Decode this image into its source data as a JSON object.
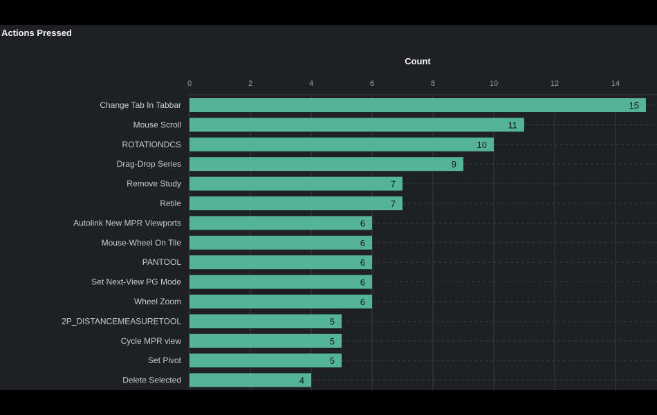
{
  "panel": {
    "title": "Actions Pressed"
  },
  "colors": {
    "background": "#000000",
    "panel": "#1f2024",
    "bar": "#56b496",
    "grid": "#3a3c42",
    "tick_text": "#9a9da3",
    "category_text": "#c8cace"
  },
  "chart_data": {
    "type": "bar",
    "orientation": "horizontal",
    "title": "",
    "xlabel": "Count",
    "ylabel": "",
    "xlim": [
      0,
      15
    ],
    "x_ticks": [
      0,
      2,
      4,
      6,
      8,
      10,
      12,
      14
    ],
    "x_axis_position": "top",
    "grid": "vertical solid, horizontal dashed",
    "categories": [
      "Change Tab In Tabbar",
      "Mouse Scroll",
      "ROTATIONDCS",
      "Drag-Drop Series",
      "Remove Study",
      "Retile",
      "Autolink New MPR Viewports",
      "Mouse-Wheel On Tile",
      "PANTOOL",
      "Set Next-View PG Mode",
      "Wheel Zoom",
      "2P_DISTANCEMEASURETOOL",
      "Cycle MPR view",
      "Set Pivot",
      "Delete Selected"
    ],
    "values": [
      15,
      11,
      10,
      9,
      7,
      7,
      6,
      6,
      6,
      6,
      6,
      5,
      5,
      5,
      4
    ]
  }
}
